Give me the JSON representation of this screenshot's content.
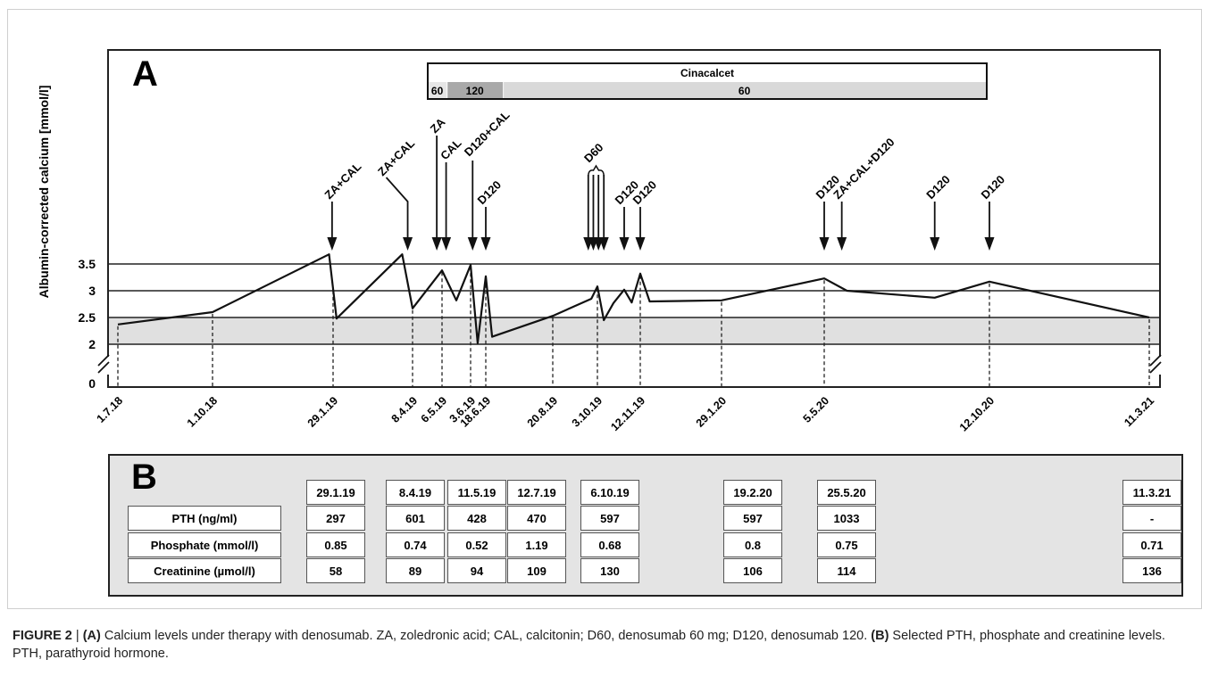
{
  "panel_a_letter": "A",
  "panel_b_letter": "B",
  "cinacalcet": {
    "title": "Cinacalcet",
    "segments": [
      {
        "label": "60",
        "start": "1.7.18",
        "end": "1.8.18",
        "shade": "#e6e6e6"
      },
      {
        "label": "120",
        "start": "1.8.18",
        "end": "1.11.18",
        "shade": "#a9a9a9"
      },
      {
        "label": "60",
        "start": "1.11.18",
        "end": "1.1.21",
        "shade": "#d9d9d9"
      }
    ]
  },
  "chart_data": {
    "type": "line",
    "ylabel": "Albumin-corrected calcium [mmol/l]",
    "yticks": [
      "0",
      "2",
      "2.5",
      "3",
      "3.5"
    ],
    "reference_lines": [
      2,
      2.5,
      3,
      3.5
    ],
    "normal_range_shaded": [
      2,
      2.5
    ],
    "axis_break": true,
    "x_date_labels": [
      "1.7.18",
      "1.10.18",
      "29.1.19",
      "8.4.19",
      "6.5.19",
      "3.6.19",
      "18.6.19",
      "20.8.19",
      "3.10.19",
      "12.11.19",
      "29.1.20",
      "5.5.20",
      "12.10.20",
      "11.3.21"
    ],
    "series": [
      {
        "name": "",
        "points": [
          {
            "x": "2018-07-01",
            "y": 2.37
          },
          {
            "x": "2018-10-01",
            "y": 2.6
          },
          {
            "x": "2019-01-25",
            "y": 3.68
          },
          {
            "x": "2019-02-01",
            "y": 2.48
          },
          {
            "x": "2019-03-30",
            "y": 3.68
          },
          {
            "x": "2019-04-08",
            "y": 2.67
          },
          {
            "x": "2019-05-06",
            "y": 3.38
          },
          {
            "x": "2019-05-20",
            "y": 2.82
          },
          {
            "x": "2019-06-03",
            "y": 3.48
          },
          {
            "x": "2019-06-10",
            "y": 2.02
          },
          {
            "x": "2019-06-18",
            "y": 3.27
          },
          {
            "x": "2019-06-24",
            "y": 2.14
          },
          {
            "x": "2019-08-20",
            "y": 2.53
          },
          {
            "x": "2019-09-27",
            "y": 2.85
          },
          {
            "x": "2019-10-03",
            "y": 3.08
          },
          {
            "x": "2019-10-09",
            "y": 2.45
          },
          {
            "x": "2019-10-18",
            "y": 2.77
          },
          {
            "x": "2019-10-28",
            "y": 3.02
          },
          {
            "x": "2019-11-04",
            "y": 2.78
          },
          {
            "x": "2019-11-12",
            "y": 3.32
          },
          {
            "x": "2019-11-21",
            "y": 2.8
          },
          {
            "x": "2020-01-29",
            "y": 2.82
          },
          {
            "x": "2020-05-05",
            "y": 3.23
          },
          {
            "x": "2020-05-27",
            "y": 3.0
          },
          {
            "x": "2020-08-20",
            "y": 2.87
          },
          {
            "x": "2020-10-12",
            "y": 3.17
          },
          {
            "x": "2021-03-11",
            "y": 2.5
          }
        ]
      }
    ],
    "annotations": [
      {
        "label": "ZA+CAL",
        "date": "2019-01-28"
      },
      {
        "label": "ZA+CAL",
        "date": "2019-04-03"
      },
      {
        "label": "ZA",
        "date": "2019-05-01"
      },
      {
        "label": "CAL",
        "date": "2019-05-10"
      },
      {
        "label": "D120+CAL",
        "date": "2019-06-05"
      },
      {
        "label": "D120",
        "date": "2019-06-18"
      },
      {
        "label": "D60",
        "date": "2019-10-03",
        "arrow_dates": [
          "2019-09-24",
          "2019-09-29",
          "2019-10-04",
          "2019-10-09"
        ]
      },
      {
        "label": "D120",
        "date": "2019-10-28"
      },
      {
        "label": "D120",
        "date": "2019-11-12"
      },
      {
        "label": "D120",
        "date": "2020-05-05"
      },
      {
        "label": "ZA+CAL+D120",
        "date": "2020-05-22"
      },
      {
        "label": "D120",
        "date": "2020-08-20"
      },
      {
        "label": "D120",
        "date": "2020-10-12"
      }
    ]
  },
  "table": {
    "row_labels": [
      "PTH (ng/ml)",
      "Phosphate (mmol/l)",
      "Creatinine (µmol/l)"
    ],
    "columns": [
      {
        "date": "29.1.19",
        "values": [
          "297",
          "0.85",
          "58"
        ]
      },
      {
        "date": "8.4.19",
        "values": [
          "601",
          "0.74",
          "89"
        ]
      },
      {
        "date": "11.5.19",
        "values": [
          "428",
          "0.52",
          "94"
        ]
      },
      {
        "date": "12.7.19",
        "values": [
          "470",
          "1.19",
          "109"
        ]
      },
      {
        "date": "6.10.19",
        "values": [
          "597",
          "0.68",
          "130"
        ]
      },
      {
        "date": "19.2.20",
        "values": [
          "597",
          "0.8",
          "106"
        ]
      },
      {
        "date": "25.5.20",
        "values": [
          "1033",
          "0.75",
          "114"
        ]
      },
      {
        "date": "11.3.21",
        "values": [
          "-",
          "0.71",
          "136"
        ]
      }
    ]
  },
  "caption": {
    "figure": "FIGURE 2",
    "sep": " | ",
    "a_tag": "(A)",
    "a_text": " Calcium levels under therapy with denosumab. ZA, zoledronic acid; CAL, calcitonin; D60, denosumab 60 mg; D120, denosumab 120. ",
    "b_tag": "(B)",
    "b_text": " Selected PTH, phosphate and creatinine levels. PTH, parathyroid hormone."
  },
  "colors": {
    "line": "#111111",
    "normal_band": "#e0e0e0",
    "table_bg": "#e4e4e4",
    "cell_bg": "#ffffff"
  }
}
